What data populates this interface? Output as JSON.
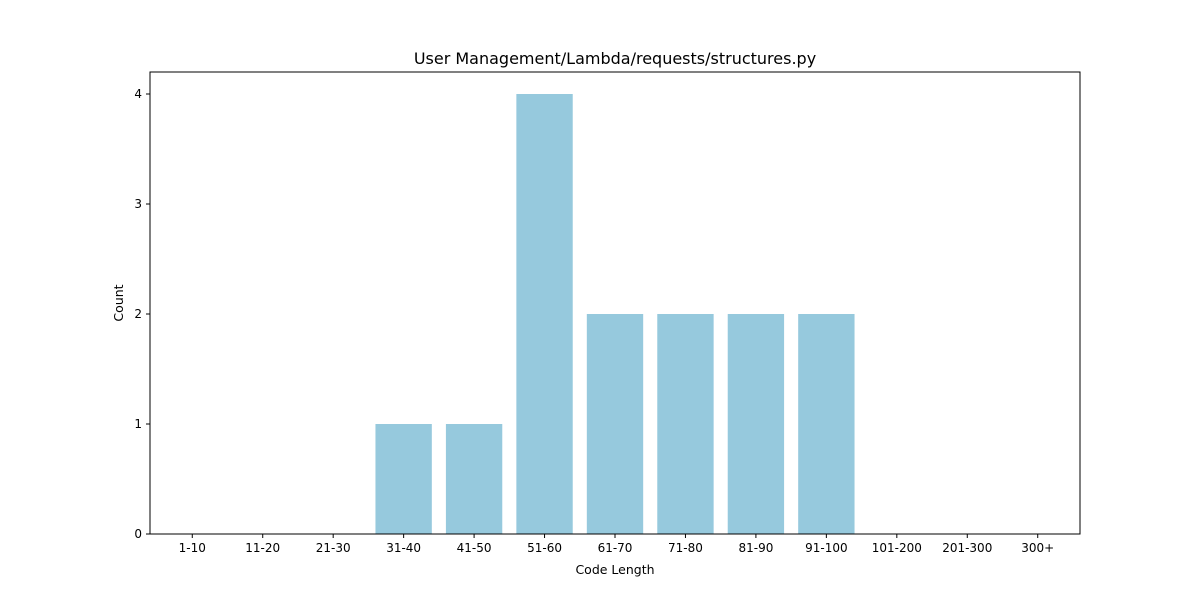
{
  "chart_data": {
    "type": "bar",
    "title": "User Management/Lambda/requests/structures.py",
    "xlabel": "Code Length",
    "ylabel": "Count",
    "categories": [
      "1-10",
      "11-20",
      "21-30",
      "31-40",
      "41-50",
      "51-60",
      "61-70",
      "71-80",
      "81-90",
      "91-100",
      "101-200",
      "201-300",
      "300+"
    ],
    "values": [
      0,
      0,
      0,
      1,
      1,
      4,
      2,
      2,
      2,
      2,
      0,
      0,
      0
    ],
    "ylim": [
      0,
      4.2
    ],
    "yticks": [
      0,
      1,
      2,
      3,
      4
    ],
    "bar_color": "#96c9dd",
    "grid": false,
    "legend": "none"
  }
}
